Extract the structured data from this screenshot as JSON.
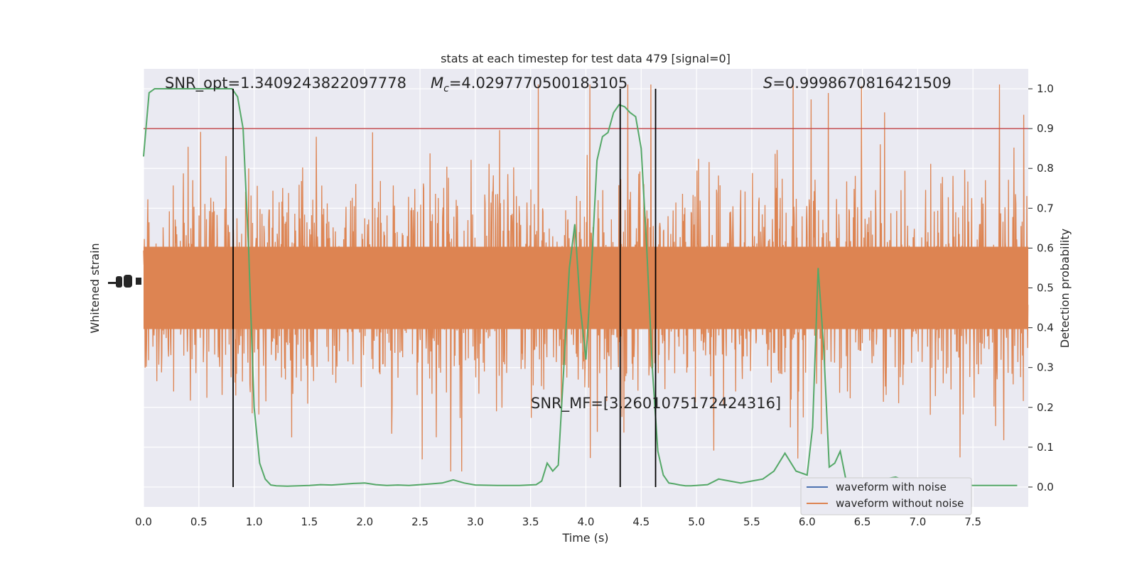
{
  "chart_data": {
    "type": "line",
    "title": "stats at each timestep for test data 479 [signal=0]",
    "xlabel": "Time (s)",
    "ylabel_left": "Whitened strain",
    "ylabel_right": "Detection probability",
    "xlim": [
      0.0,
      8.0
    ],
    "ylim_right": [
      -0.05,
      1.05
    ],
    "x_ticks": [
      "0.0",
      "0.5",
      "1.0",
      "1.5",
      "2.0",
      "2.5",
      "3.0",
      "3.5",
      "4.0",
      "4.5",
      "5.0",
      "5.5",
      "6.0",
      "6.5",
      "7.0",
      "7.5"
    ],
    "right_ticks": [
      "0.0",
      "0.1",
      "0.2",
      "0.3",
      "0.4",
      "0.5",
      "0.6",
      "0.7",
      "0.8",
      "0.9",
      "1.0"
    ],
    "grid": true,
    "annotations": {
      "snr_opt": "SNR_opt=1.3409243822097778",
      "mc_symbol": "M",
      "mc_sub": "c",
      "mc_value": "=4.0297770500183105",
      "s_symbol": "S",
      "s_value": "=0.9998670816421509",
      "snr_mf": "SNR_MF=[3.2601075172424316]"
    },
    "threshold": 0.9,
    "vertical_lines_x": [
      0.81,
      4.31,
      4.63
    ],
    "series": [
      {
        "name": "waveform with noise",
        "color": "#4c72b0"
      },
      {
        "name": "waveform without noise",
        "color": "#dd8452"
      },
      {
        "color": "#55a868",
        "x": [
          0.0,
          0.05,
          0.1,
          0.15,
          0.2,
          0.3,
          0.4,
          0.5,
          0.6,
          0.7,
          0.8,
          0.85,
          0.9,
          0.95,
          1.0,
          1.05,
          1.1,
          1.15,
          1.2,
          1.3,
          1.4,
          1.5,
          1.6,
          1.7,
          1.8,
          1.9,
          2.0,
          2.1,
          2.2,
          2.3,
          2.4,
          2.5,
          2.6,
          2.7,
          2.8,
          2.9,
          3.0,
          3.2,
          3.4,
          3.55,
          3.6,
          3.65,
          3.7,
          3.75,
          3.8,
          3.85,
          3.9,
          3.95,
          4.0,
          4.05,
          4.1,
          4.15,
          4.2,
          4.25,
          4.3,
          4.35,
          4.4,
          4.45,
          4.5,
          4.55,
          4.6,
          4.65,
          4.7,
          4.75,
          4.8,
          4.85,
          4.9,
          4.95,
          5.0,
          5.1,
          5.2,
          5.3,
          5.4,
          5.5,
          5.6,
          5.7,
          5.8,
          5.9,
          6.0,
          6.05,
          6.1,
          6.15,
          6.2,
          6.25,
          6.3,
          6.35,
          6.4,
          6.45,
          6.5,
          6.55,
          6.6,
          6.65,
          6.7,
          6.8,
          6.9,
          7.0,
          7.1,
          7.2,
          7.3,
          7.4,
          7.5,
          7.6,
          7.7,
          7.8,
          7.9
        ],
        "y": [
          0.83,
          0.99,
          1.0,
          1.0,
          1.0,
          1.0,
          1.0,
          1.0,
          1.0,
          1.0,
          1.0,
          0.98,
          0.9,
          0.6,
          0.2,
          0.06,
          0.02,
          0.005,
          0.003,
          0.002,
          0.003,
          0.004,
          0.006,
          0.005,
          0.007,
          0.009,
          0.01,
          0.006,
          0.004,
          0.005,
          0.004,
          0.006,
          0.008,
          0.01,
          0.018,
          0.01,
          0.005,
          0.004,
          0.004,
          0.006,
          0.015,
          0.06,
          0.04,
          0.055,
          0.3,
          0.55,
          0.66,
          0.45,
          0.32,
          0.55,
          0.82,
          0.88,
          0.89,
          0.94,
          0.96,
          0.955,
          0.94,
          0.93,
          0.85,
          0.6,
          0.3,
          0.09,
          0.03,
          0.01,
          0.008,
          0.005,
          0.003,
          0.003,
          0.004,
          0.006,
          0.02,
          0.015,
          0.01,
          0.015,
          0.02,
          0.04,
          0.085,
          0.04,
          0.03,
          0.15,
          0.55,
          0.35,
          0.05,
          0.06,
          0.09,
          0.02,
          0.006,
          0.006,
          0.005,
          0.006,
          0.01,
          0.015,
          0.02,
          0.025,
          0.015,
          0.01,
          0.008,
          0.005,
          0.005,
          0.005,
          0.004,
          0.004,
          0.004,
          0.004,
          0.004
        ]
      }
    ]
  }
}
